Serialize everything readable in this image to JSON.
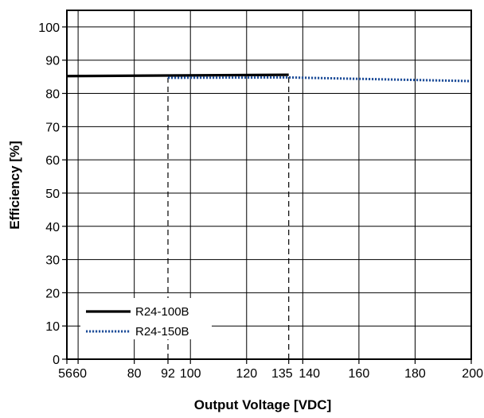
{
  "chart_data": {
    "type": "line",
    "xlabel": "Output Voltage [VDC]",
    "ylabel": "Efficiency [%]",
    "xlim": [
      56,
      200
    ],
    "ylim": [
      0,
      105
    ],
    "x_ticks": [
      56,
      60,
      80,
      92,
      100,
      120,
      135,
      140,
      160,
      180,
      200
    ],
    "y_ticks": [
      0,
      10,
      20,
      30,
      40,
      50,
      60,
      70,
      80,
      90,
      100
    ],
    "grid_x": [
      60,
      80,
      100,
      120,
      140,
      160,
      180
    ],
    "grid_y": [
      10,
      20,
      30,
      40,
      50,
      60,
      70,
      80,
      90,
      100
    ],
    "legend_position": "bottom-left",
    "series": [
      {
        "name": "R24-100B",
        "color": "#000000",
        "style": "solid",
        "x": [
          56,
          135
        ],
        "y": [
          85.2,
          85.6
        ]
      },
      {
        "name": "R24-150B",
        "color": "#1f4e99",
        "style": "dotted",
        "x": [
          92,
          135,
          200
        ],
        "y": [
          84.7,
          84.8,
          83.7
        ]
      }
    ],
    "reference_lines": [
      {
        "x": 92,
        "y_top": 84.7
      },
      {
        "x": 135,
        "y_top": 85.6
      }
    ]
  }
}
